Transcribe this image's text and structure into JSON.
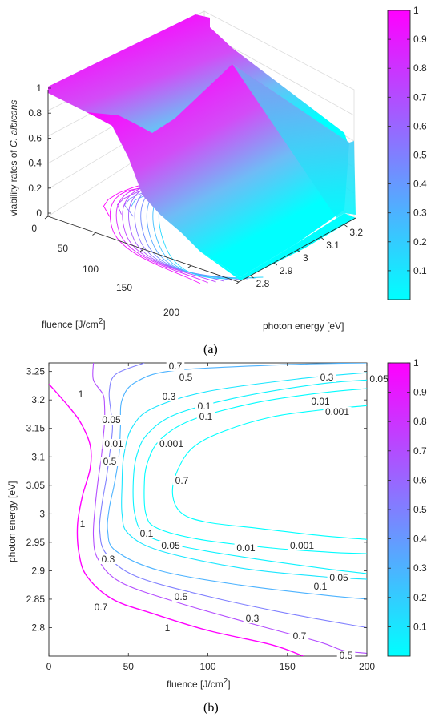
{
  "colors": {
    "low": "#00ffff",
    "high": "#ff00ff",
    "axis": "#262626",
    "grid": "#d9d9d9"
  },
  "panel_a": {
    "caption": "(a)",
    "zlabel_prefix": "viability rates of ",
    "zlabel_species": "C. albicans",
    "xlabel_prefix": "fluence [J/cm",
    "xlabel_sup": "2",
    "xlabel_suffix": "]",
    "ylabel": "photon energy [eV]",
    "x_ticks": [
      "0",
      "50",
      "100",
      "150",
      "200"
    ],
    "y_ticks": [
      "2.8",
      "2.9",
      "3",
      "3.1",
      "3.2"
    ],
    "z_ticks": [
      "0",
      "0.2",
      "0.4",
      "0.6",
      "0.8",
      "1"
    ],
    "colorbar_ticks": [
      "0.1",
      "0.2",
      "0.3",
      "0.4",
      "0.5",
      "0.6",
      "0.7",
      "0.8",
      "0.9",
      "1"
    ]
  },
  "panel_b": {
    "caption": "(b)",
    "xlabel_prefix": "fluence [J/cm",
    "xlabel_sup": "2",
    "xlabel_suffix": "]",
    "ylabel": "photon energy [eV]",
    "x_ticks": [
      "0",
      "50",
      "100",
      "150",
      "200"
    ],
    "y_ticks": [
      "3.25",
      "3.2",
      "3.15",
      "3.1",
      "3.05",
      "3",
      "2.95",
      "2.9",
      "2.85",
      "2.8"
    ],
    "colorbar_ticks": [
      "0.1",
      "0.2",
      "0.3",
      "0.4",
      "0.5",
      "0.6",
      "0.7",
      "0.8",
      "0.9",
      "1"
    ],
    "contour_labels": [
      {
        "text": "0.7",
        "level": 0.7
      },
      {
        "text": "0.5",
        "level": 0.5
      },
      {
        "text": "0.3",
        "level": 0.3
      },
      {
        "text": "0.1",
        "level": 0.1
      },
      {
        "text": "0.05",
        "level": 0.05
      },
      {
        "text": "0.01",
        "level": 0.01
      },
      {
        "text": "0.001",
        "level": 0.001
      },
      {
        "text": "1",
        "level": 1
      },
      {
        "text": "0.3",
        "level": 0.3
      },
      {
        "text": "0.1",
        "level": 0.1
      },
      {
        "text": "0.05",
        "level": 0.05
      },
      {
        "text": "0.01",
        "level": 0.01
      },
      {
        "text": "0.001",
        "level": 0.001
      },
      {
        "text": "0.7",
        "level": 0.7
      },
      {
        "text": "0.5",
        "level": 0.5
      },
      {
        "text": "0.1",
        "level": 0.1
      },
      {
        "text": "0.05",
        "level": 0.05
      },
      {
        "text": "0.01",
        "level": 0.01
      },
      {
        "text": "0.001",
        "level": 0.001
      },
      {
        "text": "1",
        "level": 1
      },
      {
        "text": "0.3",
        "level": 0.3
      },
      {
        "text": "0.1",
        "level": 0.1
      },
      {
        "text": "0.05",
        "level": 0.05
      },
      {
        "text": "0.7",
        "level": 0.7
      },
      {
        "text": "0.5",
        "level": 0.5
      },
      {
        "text": "0.3",
        "level": 0.3
      },
      {
        "text": "0.7",
        "level": 0.7
      },
      {
        "text": "0.5",
        "level": 0.5
      },
      {
        "text": "1",
        "level": 1
      }
    ]
  },
  "chart_data": [
    {
      "type": "surface",
      "title": "",
      "xlabel": "fluence [J/cm2]",
      "ylabel": "photon energy [eV]",
      "zlabel": "viability rates of C. albicans",
      "xlim": [
        0,
        200
      ],
      "ylim": [
        2.75,
        3.25
      ],
      "zlim": [
        0,
        1
      ],
      "colormap": [
        "#00ffff",
        "#ff00ff"
      ],
      "clim": [
        0,
        1
      ]
    },
    {
      "type": "contour",
      "title": "",
      "xlabel": "fluence [J/cm2]",
      "ylabel": "photon energy [eV]",
      "xlim": [
        0,
        200
      ],
      "ylim": [
        2.75,
        3.265
      ],
      "levels": [
        1,
        0.7,
        0.5,
        0.3,
        0.1,
        0.05,
        0.01,
        0.001
      ],
      "level_curves": [
        {
          "level": 1,
          "points": [
            [
              0,
              3.228
            ],
            [
              12,
              3.19
            ],
            [
              20,
              3.16
            ],
            [
              26,
              3.12
            ],
            [
              26,
              3.08
            ],
            [
              21,
              3.03
            ],
            [
              18,
              2.98
            ],
            [
              19,
              2.93
            ],
            [
              24,
              2.89
            ],
            [
              40,
              2.85
            ],
            [
              65,
              2.825
            ],
            [
              100,
              2.795
            ],
            [
              140,
              2.77
            ],
            [
              160,
              2.75
            ]
          ]
        },
        {
          "level": 0.7,
          "points": [
            [
              28,
              3.265
            ],
            [
              28,
              3.235
            ],
            [
              34,
              3.21
            ],
            [
              35,
              3.19
            ],
            [
              35,
              3.16
            ],
            [
              34,
              3.13
            ],
            [
              33,
              3.1
            ],
            [
              31,
              3.06
            ],
            [
              29,
              3.01
            ],
            [
              28,
              2.96
            ],
            [
              31,
              2.92
            ],
            [
              45,
              2.88
            ],
            [
              80,
              2.845
            ],
            [
              130,
              2.805
            ],
            [
              170,
              2.775
            ],
            [
              185,
              2.76
            ],
            [
              200,
              2.755
            ]
          ]
        },
        {
          "level": 0.5,
          "points": [
            [
              60,
              3.265
            ],
            [
              42,
              3.245
            ],
            [
              38,
              3.215
            ],
            [
              39,
              3.18
            ],
            [
              40,
              3.15
            ],
            [
              38,
              3.1
            ],
            [
              36,
              3.06
            ],
            [
              33,
              3.01
            ],
            [
              32,
              2.97
            ],
            [
              36,
              2.93
            ],
            [
              55,
              2.89
            ],
            [
              100,
              2.855
            ],
            [
              150,
              2.825
            ],
            [
              200,
              2.8
            ]
          ]
        },
        {
          "level": 0.3,
          "points": [
            [
              200,
              3.265
            ],
            [
              150,
              3.262
            ],
            [
              80,
              3.252
            ],
            [
              55,
              3.232
            ],
            [
              46,
              3.2
            ],
            [
              45,
              3.15
            ],
            [
              44,
              3.1
            ],
            [
              41,
              3.05
            ],
            [
              38,
              3.01
            ],
            [
              37,
              2.97
            ],
            [
              42,
              2.935
            ],
            [
              70,
              2.9
            ],
            [
              120,
              2.875
            ],
            [
              170,
              2.858
            ],
            [
              200,
              2.85
            ]
          ]
        },
        {
          "level": 0.1,
          "points": [
            [
              200,
              3.248
            ],
            [
              160,
              3.238
            ],
            [
              100,
              3.215
            ],
            [
              65,
              3.185
            ],
            [
              52,
              3.15
            ],
            [
              47,
              3.1
            ],
            [
              46,
              3.05
            ],
            [
              46,
              3.0
            ],
            [
              50,
              2.965
            ],
            [
              70,
              2.935
            ],
            [
              120,
              2.905
            ],
            [
              170,
              2.89
            ],
            [
              200,
              2.885
            ]
          ]
        },
        {
          "level": 0.05,
          "points": [
            [
              200,
              3.235
            ],
            [
              170,
              3.228
            ],
            [
              120,
              3.205
            ],
            [
              80,
              3.175
            ],
            [
              62,
              3.14
            ],
            [
              55,
              3.1
            ],
            [
              53,
              3.05
            ],
            [
              54,
              3.0
            ],
            [
              60,
              2.965
            ],
            [
              80,
              2.945
            ],
            [
              120,
              2.925
            ],
            [
              170,
              2.905
            ],
            [
              200,
              2.895
            ]
          ]
        },
        {
          "level": 0.01,
          "points": [
            [
              200,
              3.22
            ],
            [
              170,
              3.212
            ],
            [
              130,
              3.195
            ],
            [
              90,
              3.165
            ],
            [
              70,
              3.13
            ],
            [
              62,
              3.09
            ],
            [
              60,
              3.05
            ],
            [
              61,
              3.0
            ],
            [
              68,
              2.975
            ],
            [
              95,
              2.955
            ],
            [
              140,
              2.94
            ],
            [
              180,
              2.932
            ],
            [
              200,
              2.93
            ]
          ]
        },
        {
          "level": 0.001,
          "points": [
            [
              200,
              3.19
            ],
            [
              170,
              3.182
            ],
            [
              140,
              3.17
            ],
            [
              110,
              3.145
            ],
            [
              90,
              3.115
            ],
            [
              80,
              3.07
            ],
            [
              78,
              3.03
            ],
            [
              84,
              3.0
            ],
            [
              100,
              2.985
            ],
            [
              130,
              2.975
            ],
            [
              170,
              2.962
            ],
            [
              200,
              2.955
            ]
          ]
        }
      ]
    }
  ]
}
